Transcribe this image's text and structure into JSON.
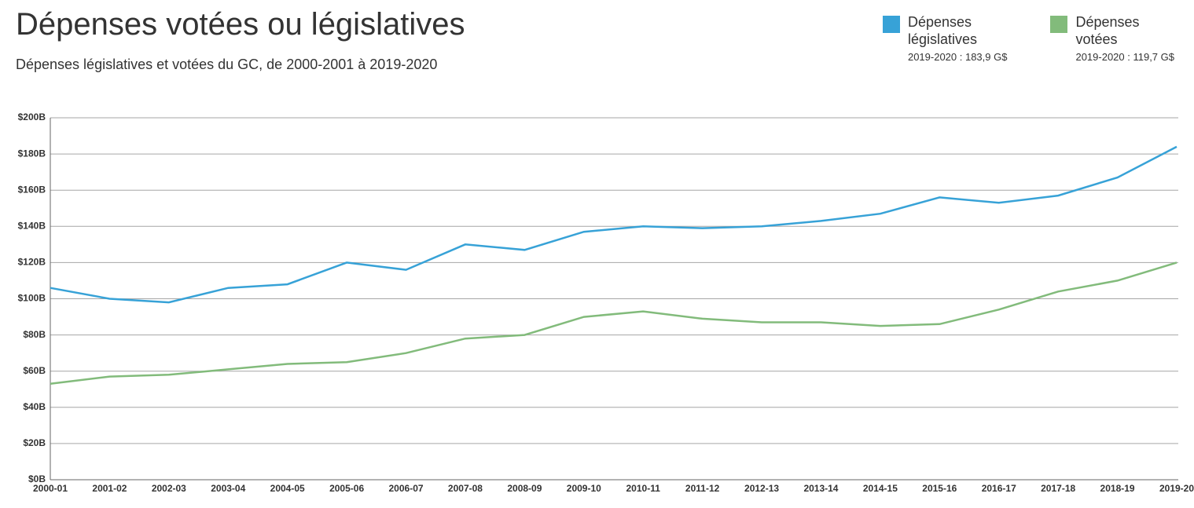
{
  "header": {
    "title": "Dépenses votées ou législatives",
    "subtitle": "Dépenses législatives et votées du GC, de 2000-2001 à 2019-2020"
  },
  "legend": {
    "items": [
      {
        "label": "Dépenses\nlégislatives",
        "sub": "2019-2020 : 183,9 G$",
        "color": "#37a2d7"
      },
      {
        "label": "Dépenses\nvotées",
        "sub": "2019-2020 : 119,7 G$",
        "color": "#82bb7b"
      }
    ]
  },
  "chart": {
    "type": "line",
    "background_color": "#ffffff",
    "grid_color": "#a6a6a6",
    "axis_color": "#666666",
    "font_family": "Segoe UI",
    "ylim": [
      0,
      200
    ],
    "ytick_step": 20,
    "ytick_format_prefix": "$",
    "ytick_format_suffix": "B",
    "x_labels": [
      "2000-01",
      "2001-02",
      "2002-03",
      "2003-04",
      "2004-05",
      "2005-06",
      "2006-07",
      "2007-08",
      "2008-09",
      "2009-10",
      "2010-11",
      "2011-12",
      "2012-13",
      "2013-14",
      "2014-15",
      "2015-16",
      "2016-17",
      "2017-18",
      "2018-19",
      "2019-20"
    ],
    "series": [
      {
        "name": "Dépenses législatives",
        "color": "#37a2d7",
        "line_width": 2.5,
        "values": [
          106,
          100,
          98,
          106,
          108,
          120,
          116,
          130,
          127,
          137,
          140,
          139,
          140,
          143,
          147,
          156,
          153,
          157,
          167,
          184
        ]
      },
      {
        "name": "Dépenses votées",
        "color": "#82bb7b",
        "line_width": 2.5,
        "values": [
          53,
          57,
          58,
          61,
          64,
          65,
          70,
          78,
          80,
          90,
          93,
          89,
          87,
          87,
          85,
          86,
          94,
          104,
          110,
          120
        ]
      }
    ]
  }
}
